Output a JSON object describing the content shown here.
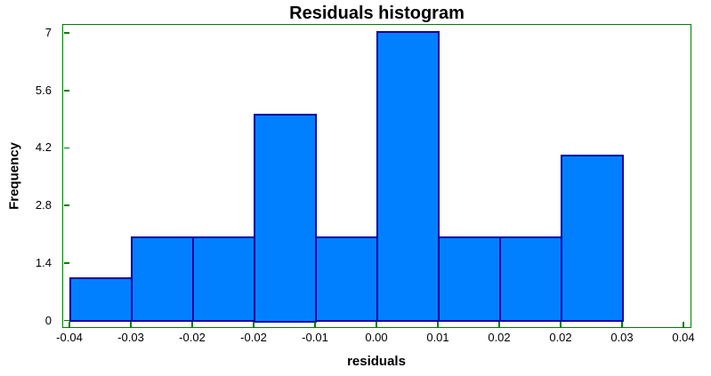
{
  "chart_data": {
    "type": "bar",
    "subtype": "histogram",
    "title": "Residuals histogram",
    "xlabel": "residuals",
    "ylabel": "Frequency",
    "bin_start": -0.04,
    "bin_width": 0.008,
    "frequencies": [
      1,
      2,
      2,
      5,
      2,
      7,
      2,
      2,
      4
    ],
    "x_tick_labels": [
      "-0.04",
      "-0.03",
      "-0.02",
      "-0.02",
      "-0.01",
      "0.00",
      "0.01",
      "0.02",
      "0.02",
      "0.03",
      "0.04"
    ],
    "x_tick_values": [
      -0.04,
      -0.032,
      -0.024,
      -0.016,
      -0.008,
      0.0,
      0.008,
      0.016,
      0.024,
      0.032,
      0.04
    ],
    "y_tick_labels": [
      "0",
      "1.4",
      "2.8",
      "4.2",
      "5.6",
      "7"
    ],
    "y_tick_values": [
      0,
      1.4,
      2.8,
      4.2,
      5.6,
      7
    ],
    "xlim": [
      -0.04,
      0.04
    ],
    "ylim": [
      0,
      7
    ],
    "grid": false,
    "legend": null,
    "colors": {
      "bar_fill": "#0080FF",
      "bar_border": "#0000A0",
      "axis": "#007D00",
      "text": "#000000",
      "background": "#FFFFFF"
    }
  }
}
